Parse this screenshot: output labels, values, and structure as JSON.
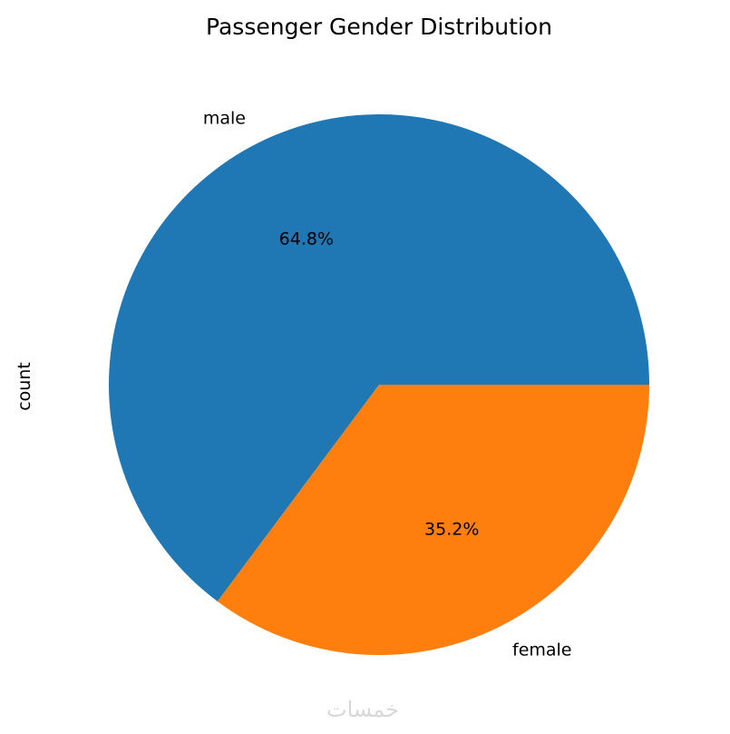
{
  "chart_data": {
    "type": "pie",
    "title": "Passenger Gender Distribution",
    "ylabel": "count",
    "start_angle_deg": 0,
    "direction": "counterclockwise",
    "slices": [
      {
        "label": "male",
        "percent": 64.8,
        "pct_label": "64.8%",
        "color": "#1f77b4"
      },
      {
        "label": "female",
        "percent": 35.2,
        "pct_label": "35.2%",
        "color": "#ff7f0e"
      }
    ]
  },
  "watermark": "خمسات"
}
